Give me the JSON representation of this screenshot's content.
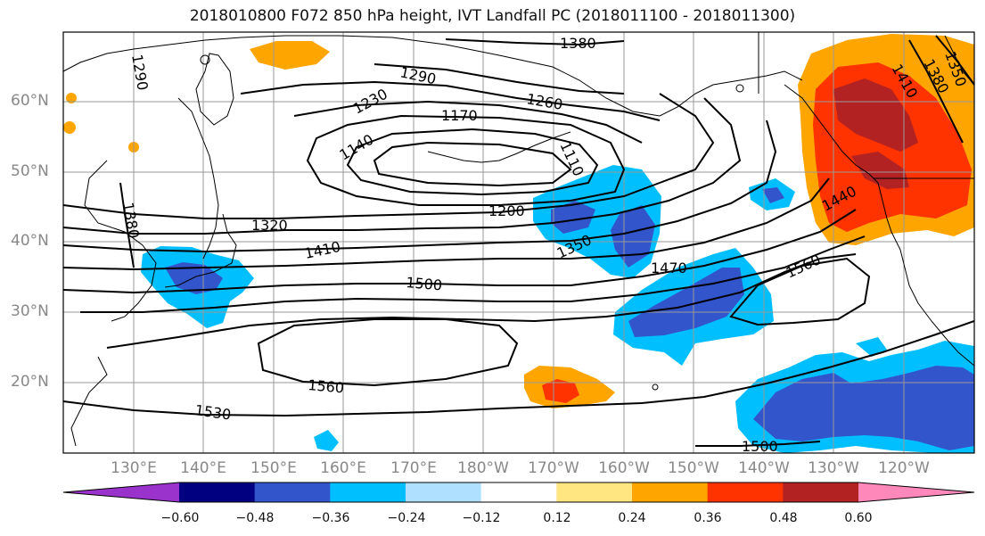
{
  "title": "2018010800 F072 850 hPa height, IVT Landfall PC (2018011100 - 2018011300)",
  "map": {
    "lat_labels": [
      "60°N",
      "50°N",
      "40°N",
      "30°N",
      "20°N"
    ],
    "lon_labels": [
      "130°E",
      "140°E",
      "150°E",
      "160°E",
      "170°E",
      "180°W",
      "170°W",
      "160°W",
      "150°W",
      "140°W",
      "130°W",
      "120°W"
    ],
    "contour_labels": [
      "1380",
      "1290",
      "1290",
      "1230",
      "1260",
      "1170",
      "1140",
      "1110",
      "1200",
      "1320",
      "1380",
      "1350",
      "1410",
      "1470",
      "1500",
      "1440",
      "1560",
      "1560",
      "1530",
      "1500",
      "1350",
      "1380",
      "1410"
    ]
  },
  "colorbar": {
    "tick_labels": [
      "−0.60",
      "−0.48",
      "−0.36",
      "−0.24",
      "−0.12",
      "0.12",
      "0.24",
      "0.36",
      "0.48",
      "0.60"
    ],
    "colors": [
      "#9933cc",
      "#000080",
      "#3355cc",
      "#00bfff",
      "#b0e0ff",
      "#ffffff",
      "#ffe680",
      "#ffa500",
      "#ff3300",
      "#b22222",
      "#ff88bb"
    ]
  }
}
